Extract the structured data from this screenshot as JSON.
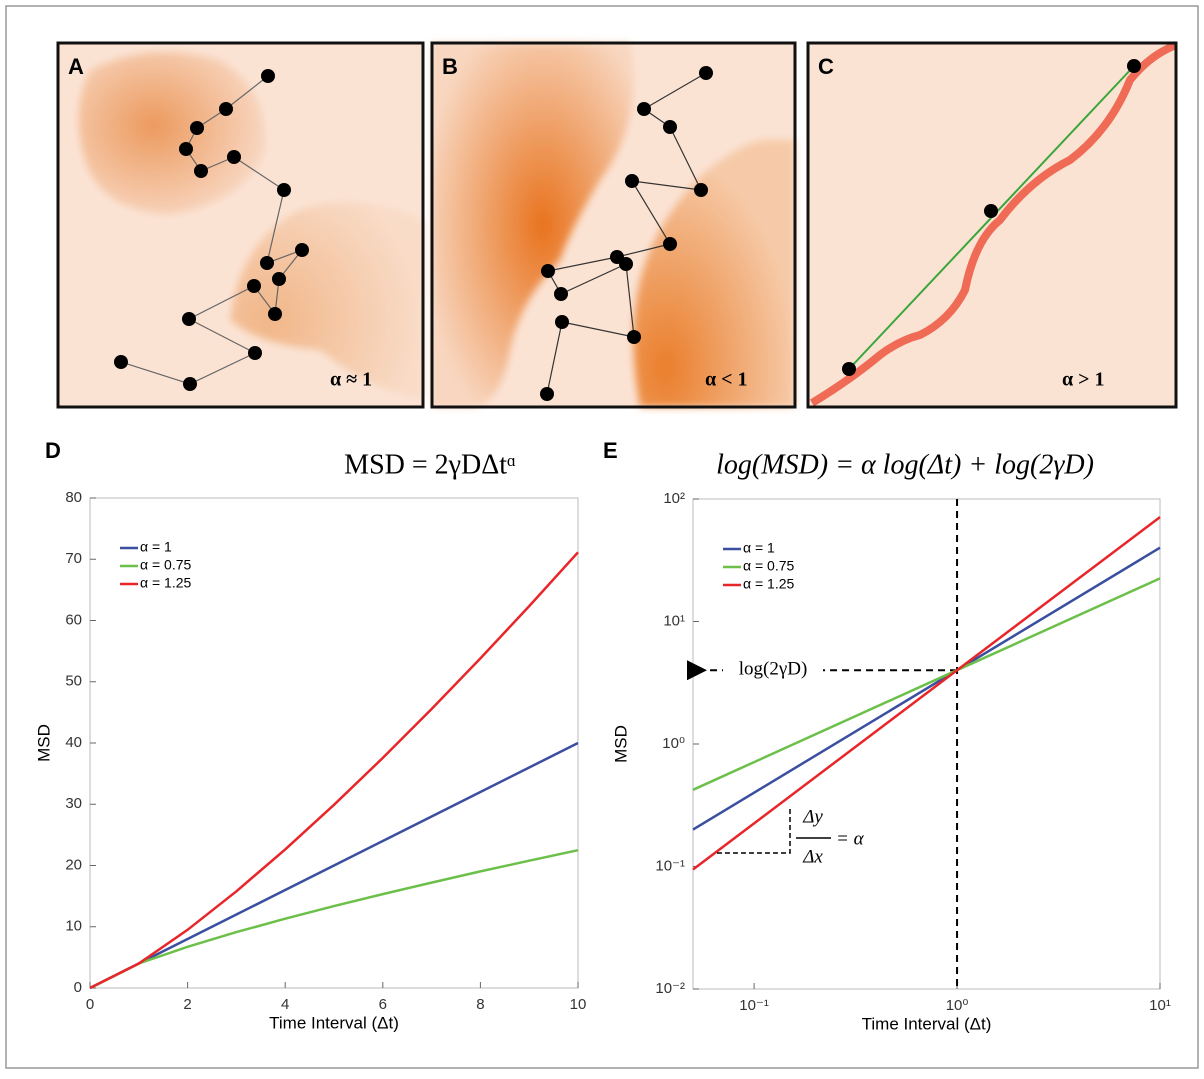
{
  "panels": [
    {
      "label": "A",
      "alpha": "α ≈ 1"
    },
    {
      "label": "B",
      "alpha": "α < 1"
    },
    {
      "label": "C",
      "alpha": "α > 1"
    }
  ],
  "chart_data": [
    {
      "type": "line",
      "label": "D",
      "title": "MSD = 2γDΔtᵅ",
      "x_label": "Time Interval (Δt)",
      "y_label": "MSD",
      "x": [
        0,
        1,
        2,
        3,
        4,
        5,
        6,
        7,
        8,
        9,
        10
      ],
      "series": [
        {
          "name": "α = 1",
          "color": "#3a4fa0",
          "values": [
            0,
            4,
            8,
            12,
            16,
            20,
            24,
            28,
            32,
            36,
            40
          ]
        },
        {
          "name": "α = 0.75",
          "color": "#6cc04a",
          "values": [
            0,
            4,
            6.73,
            9.12,
            11.31,
            13.37,
            15.33,
            17.21,
            19.03,
            20.78,
            22.49
          ]
        },
        {
          "name": "α = 1.25",
          "color": "#e8262a",
          "values": [
            0,
            4,
            9.51,
            15.79,
            22.63,
            29.91,
            37.57,
            45.55,
            53.82,
            62.35,
            71.13
          ]
        }
      ],
      "xlim": [
        0,
        10
      ],
      "ylim": [
        0,
        80
      ],
      "xticks": [
        0,
        2,
        4,
        6,
        8,
        10
      ],
      "yticks": [
        0,
        10,
        20,
        30,
        40,
        50,
        60,
        70,
        80
      ],
      "legend": "upper left",
      "grid": false
    },
    {
      "type": "line",
      "label": "E",
      "title": "log(MSD) = α log(Δt) + log(2γD)",
      "x_label": "Time Interval (Δt)",
      "y_label": "MSD",
      "x": [
        0.05,
        0.1,
        1,
        10
      ],
      "series": [
        {
          "name": "α = 1",
          "color": "#3a4fa0",
          "values": [
            0.2,
            0.4,
            4,
            40
          ]
        },
        {
          "name": "α = 0.75",
          "color": "#6cc04a",
          "values": [
            0.423,
            0.711,
            4,
            22.49
          ]
        },
        {
          "name": "α = 1.25",
          "color": "#e8262a",
          "values": [
            0.0946,
            0.225,
            4,
            71.13
          ]
        }
      ],
      "xlim": [
        0.05,
        10
      ],
      "ylim": [
        0.01,
        100
      ],
      "xticks": [
        {
          "value": 0.1,
          "label": "10⁻¹"
        },
        {
          "value": 1,
          "label": "10⁰"
        },
        {
          "value": 10,
          "label": "10¹"
        }
      ],
      "yticks": [
        {
          "value": 0.01,
          "label": "10⁻²"
        },
        {
          "value": 0.1,
          "label": "10⁻¹"
        },
        {
          "value": 1,
          "label": "10⁰"
        },
        {
          "value": 10,
          "label": "10¹"
        },
        {
          "value": 100,
          "label": "10²"
        }
      ],
      "log_x": true,
      "log_y": true,
      "legend": "upper left",
      "grid": false,
      "guides": {
        "x": 1,
        "y": 4
      },
      "annotations": [
        "log(2γD)",
        "Δy",
        "Δx",
        "= α"
      ]
    }
  ]
}
